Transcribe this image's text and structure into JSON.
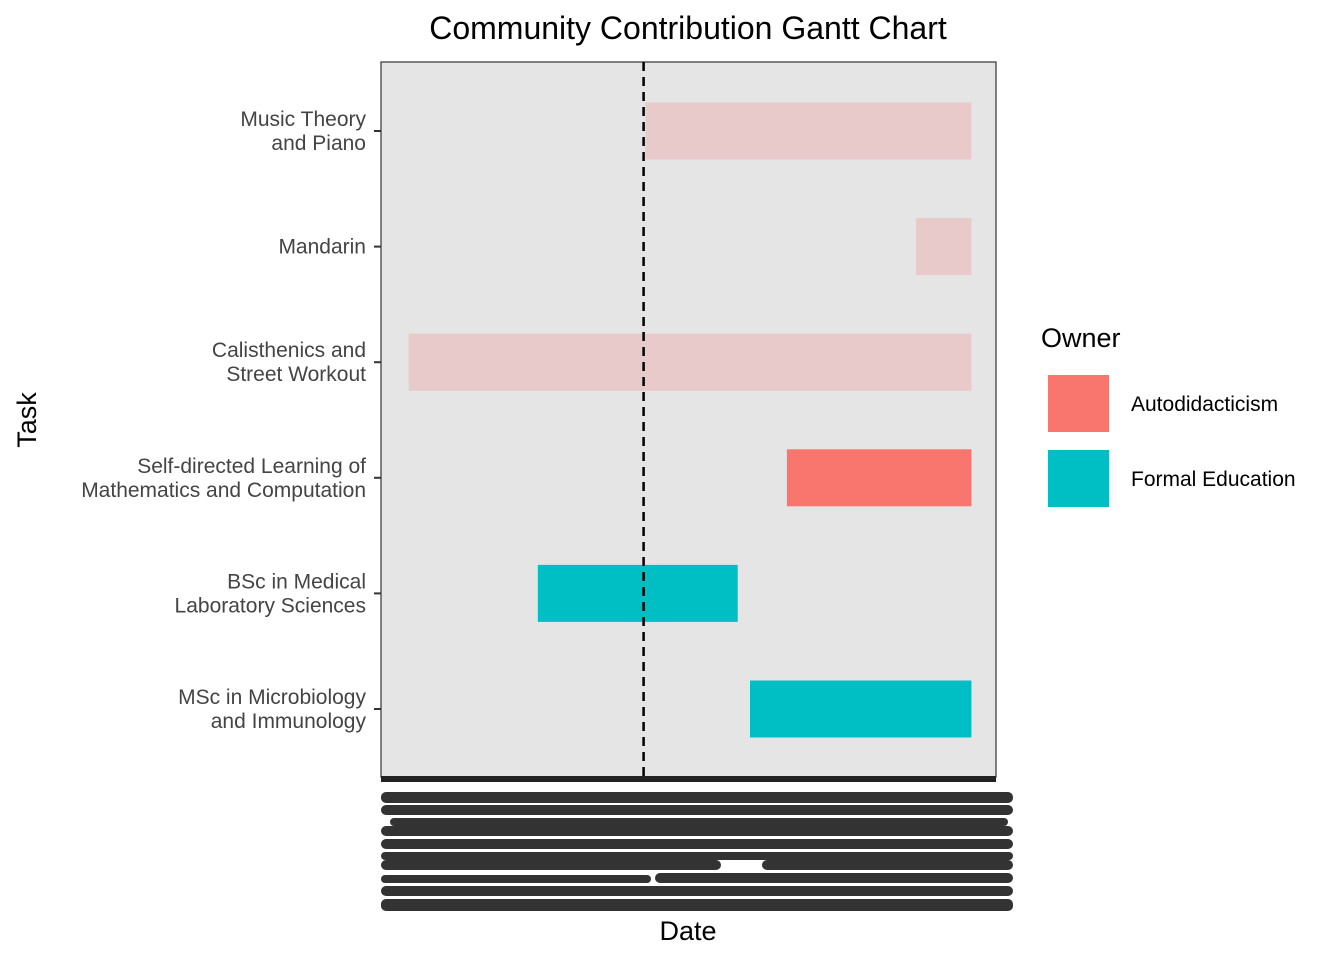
{
  "chart_data": {
    "type": "gantt",
    "title": "Community Contribution Gantt Chart",
    "xlabel": "Date",
    "ylabel": "Task",
    "x_range": [
      0,
      1
    ],
    "tasks": [
      {
        "label_lines": [
          "Music Theory",
          "and Piano"
        ],
        "owner": "Autodidacticism",
        "start": 0.43,
        "end": 0.96,
        "faded": true
      },
      {
        "label_lines": [
          "Mandarin"
        ],
        "owner": "Autodidacticism",
        "start": 0.87,
        "end": 0.96,
        "faded": true
      },
      {
        "label_lines": [
          "Calisthenics and",
          "Street Workout"
        ],
        "owner": "Autodidacticism",
        "start": 0.045,
        "end": 0.96,
        "faded": true
      },
      {
        "label_lines": [
          "Self-directed Learning of",
          "Mathematics and Computation"
        ],
        "owner": "Autodidacticism",
        "start": 0.66,
        "end": 0.96,
        "faded": false
      },
      {
        "label_lines": [
          "BSc in Medical",
          "Laboratory Sciences"
        ],
        "owner": "Formal Education",
        "start": 0.255,
        "end": 0.58,
        "faded": false
      },
      {
        "label_lines": [
          "MSc in Microbiology",
          "and Immunology"
        ],
        "owner": "Formal Education",
        "start": 0.6,
        "end": 0.96,
        "faded": false
      }
    ],
    "reference_line": {
      "x": 0.427,
      "style": "dashed"
    },
    "legend": {
      "title": "Owner",
      "placement": "right",
      "entries": [
        {
          "name": "Autodidacticism",
          "color": "#F8766D"
        },
        {
          "name": "Formal Education",
          "color": "#00BFC4"
        }
      ]
    },
    "colors": {
      "Autodidacticism": "#F8766D",
      "Formal Education": "#00BFC4",
      "faded_Autodidacticism": "#E8CACA",
      "panel": "#E5E5E5"
    },
    "grid": false
  }
}
